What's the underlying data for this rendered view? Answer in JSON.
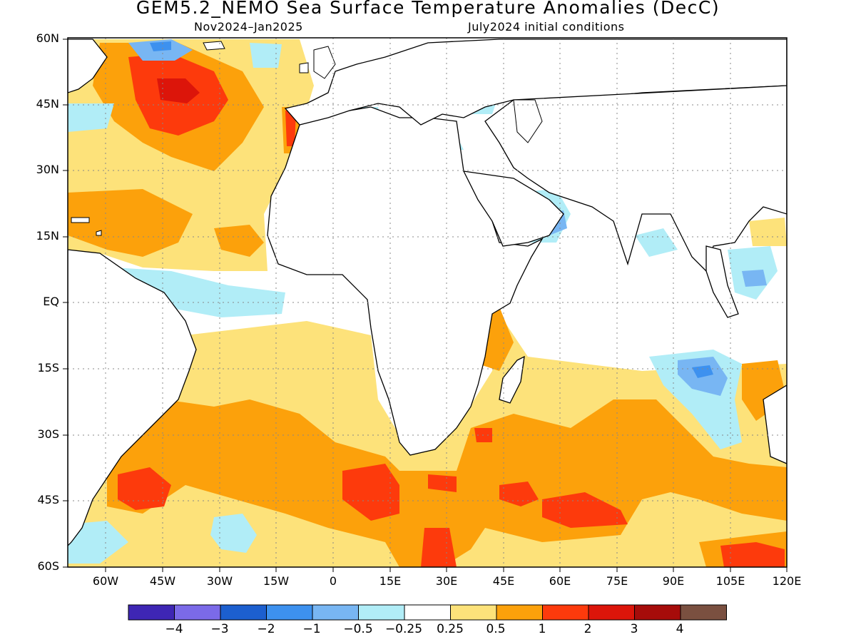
{
  "title": "GEM5.2_NEMO Sea Surface Temperature Anomalies (DecC)",
  "subtitle_left": "Nov2024–Jan2025",
  "subtitle_right": "July2024 initial conditions",
  "lat_labels": [
    "60N",
    "45N",
    "30N",
    "15N",
    "EQ",
    "15S",
    "30S",
    "45S",
    "60S"
  ],
  "lon_labels": [
    "60W",
    "45W",
    "30W",
    "15W",
    "0",
    "15E",
    "30E",
    "45E",
    "60E",
    "75E",
    "90E",
    "105E",
    "120E"
  ],
  "colorbar": {
    "colors": [
      "#3e26b4",
      "#7b6ae8",
      "#1c5fcf",
      "#3d91ef",
      "#78b6f3",
      "#b1edf7",
      "#ffffff",
      "#fde27a",
      "#fca10b",
      "#fd3a0c",
      "#dc150a",
      "#a60c0a",
      "#7a5040"
    ],
    "labels": [
      "−4",
      "−3",
      "−2",
      "−1",
      "−0.5",
      "−0.25",
      "0.25",
      "0.5",
      "1",
      "2",
      "3",
      "4"
    ]
  },
  "palette": {
    "strong_blue": "#3d91ef",
    "blue": "#78b6f3",
    "light_blue": "#b1edf7",
    "yellow": "#fde27a",
    "orange": "#fca10b",
    "red_orange": "#fd3a0c",
    "red": "#dc150a",
    "coast": "#000000"
  }
}
